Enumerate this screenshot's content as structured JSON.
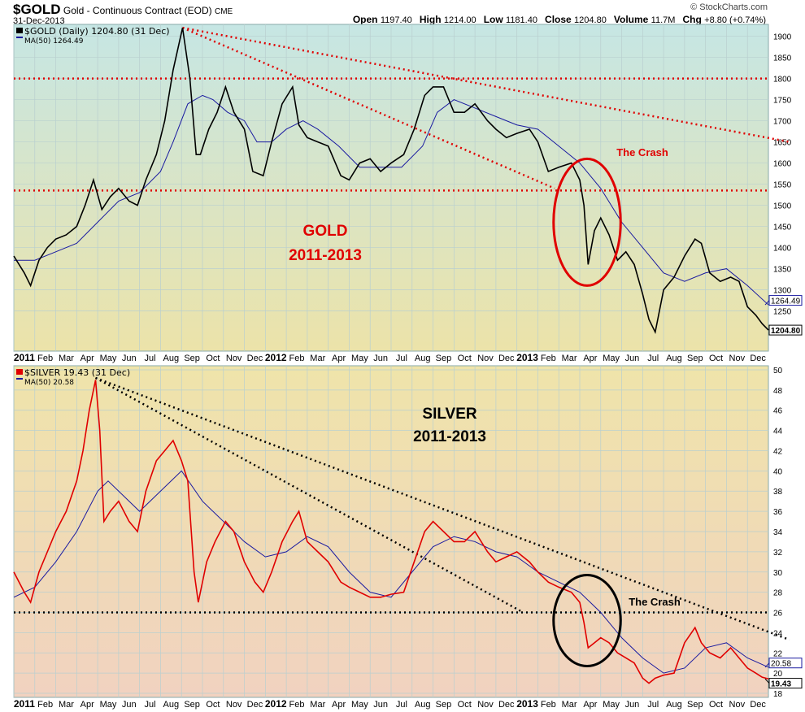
{
  "header": {
    "symbol": "$GOLD",
    "name": "Gold - Continuous Contract (EOD)",
    "exchange": "CME",
    "date": "31-Dec-2013",
    "brand": "© StockCharts.com",
    "quote": [
      {
        "k": "Open",
        "v": "1197.40"
      },
      {
        "k": "High",
        "v": "1214.00"
      },
      {
        "k": "Low",
        "v": "1181.40"
      },
      {
        "k": "Close",
        "v": "1204.80"
      },
      {
        "k": "Volume",
        "v": "11.7M"
      },
      {
        "k": "Chg",
        "v": "+8.80 (+0.74%)"
      }
    ]
  },
  "chart_data": [
    {
      "type": "line",
      "title": "GOLD",
      "subtitle": "2011-2013",
      "legend": [
        "$GOLD (Daily) 1204.80 (31 Dec)",
        "MA(50) 1264.49"
      ],
      "last_price": "1204.80",
      "last_ma": "1264.49",
      "ylim": [
        1155,
        1928
      ],
      "yticks": [
        1250,
        1300,
        1350,
        1400,
        1450,
        1500,
        1550,
        1600,
        1650,
        1700,
        1750,
        1800,
        1850,
        1900
      ],
      "x_unit": "months since Jan 2011",
      "price": [
        [
          0,
          1380
        ],
        [
          0.5,
          1340
        ],
        [
          0.8,
          1310
        ],
        [
          1.2,
          1370
        ],
        [
          1.6,
          1400
        ],
        [
          2,
          1420
        ],
        [
          2.5,
          1430
        ],
        [
          3,
          1450
        ],
        [
          3.4,
          1500
        ],
        [
          3.8,
          1560
        ],
        [
          4.2,
          1490
        ],
        [
          4.6,
          1520
        ],
        [
          5,
          1540
        ],
        [
          5.5,
          1510
        ],
        [
          5.9,
          1500
        ],
        [
          6.3,
          1560
        ],
        [
          6.8,
          1620
        ],
        [
          7.2,
          1700
        ],
        [
          7.6,
          1820
        ],
        [
          8.05,
          1920
        ],
        [
          8.4,
          1800
        ],
        [
          8.7,
          1620
        ],
        [
          8.9,
          1620
        ],
        [
          9.3,
          1680
        ],
        [
          9.7,
          1720
        ],
        [
          10.1,
          1780
        ],
        [
          10.5,
          1720
        ],
        [
          11,
          1680
        ],
        [
          11.4,
          1580
        ],
        [
          11.9,
          1570
        ],
        [
          12.3,
          1650
        ],
        [
          12.8,
          1740
        ],
        [
          13.3,
          1780
        ],
        [
          13.6,
          1690
        ],
        [
          14,
          1660
        ],
        [
          14.5,
          1650
        ],
        [
          15,
          1640
        ],
        [
          15.6,
          1570
        ],
        [
          16,
          1560
        ],
        [
          16.5,
          1600
        ],
        [
          17,
          1610
        ],
        [
          17.5,
          1580
        ],
        [
          18,
          1600
        ],
        [
          18.6,
          1620
        ],
        [
          19.1,
          1680
        ],
        [
          19.6,
          1760
        ],
        [
          20,
          1780
        ],
        [
          20.5,
          1780
        ],
        [
          21,
          1720
        ],
        [
          21.5,
          1720
        ],
        [
          22,
          1740
        ],
        [
          22.6,
          1700
        ],
        [
          23,
          1680
        ],
        [
          23.5,
          1660
        ],
        [
          24,
          1670
        ],
        [
          24.6,
          1680
        ],
        [
          25,
          1650
        ],
        [
          25.5,
          1580
        ],
        [
          26,
          1590
        ],
        [
          26.6,
          1600
        ],
        [
          27,
          1560
        ],
        [
          27.2,
          1500
        ],
        [
          27.4,
          1360
        ],
        [
          27.7,
          1440
        ],
        [
          28,
          1470
        ],
        [
          28.4,
          1430
        ],
        [
          28.8,
          1370
        ],
        [
          29.2,
          1390
        ],
        [
          29.6,
          1360
        ],
        [
          30,
          1290
        ],
        [
          30.3,
          1230
        ],
        [
          30.6,
          1200
        ],
        [
          31,
          1300
        ],
        [
          31.5,
          1330
        ],
        [
          32,
          1380
        ],
        [
          32.5,
          1420
        ],
        [
          32.8,
          1410
        ],
        [
          33.2,
          1340
        ],
        [
          33.7,
          1320
        ],
        [
          34.2,
          1330
        ],
        [
          34.6,
          1320
        ],
        [
          35,
          1260
        ],
        [
          35.4,
          1240
        ],
        [
          35.7,
          1220
        ],
        [
          36,
          1204.8
        ]
      ],
      "ma50": [
        [
          0,
          1370
        ],
        [
          1,
          1370
        ],
        [
          2,
          1390
        ],
        [
          3,
          1410
        ],
        [
          4,
          1460
        ],
        [
          5,
          1510
        ],
        [
          6,
          1530
        ],
        [
          7,
          1580
        ],
        [
          7.6,
          1650
        ],
        [
          8.3,
          1740
        ],
        [
          9,
          1760
        ],
        [
          9.5,
          1750
        ],
        [
          10.2,
          1720
        ],
        [
          11,
          1700
        ],
        [
          11.6,
          1650
        ],
        [
          12.3,
          1650
        ],
        [
          13,
          1680
        ],
        [
          13.8,
          1700
        ],
        [
          14.5,
          1680
        ],
        [
          15.5,
          1640
        ],
        [
          16.5,
          1590
        ],
        [
          17.5,
          1590
        ],
        [
          18.5,
          1590
        ],
        [
          19.5,
          1640
        ],
        [
          20.2,
          1720
        ],
        [
          21,
          1750
        ],
        [
          22,
          1730
        ],
        [
          23,
          1710
        ],
        [
          24,
          1690
        ],
        [
          25,
          1680
        ],
        [
          26,
          1640
        ],
        [
          27,
          1600
        ],
        [
          28,
          1540
        ],
        [
          29,
          1460
        ],
        [
          30,
          1400
        ],
        [
          31,
          1340
        ],
        [
          32,
          1320
        ],
        [
          33,
          1340
        ],
        [
          34,
          1350
        ],
        [
          35,
          1310
        ],
        [
          36,
          1264.49
        ]
      ],
      "hlines": [
        1800,
        1535
      ],
      "trendlines": [
        [
          [
            8.05,
            1920
          ],
          [
            37,
            1650
          ]
        ],
        [
          [
            8.05,
            1920
          ],
          [
            25.8,
            1540
          ]
        ]
      ],
      "annotation": {
        "text": "The Crash",
        "ellipse": {
          "cx": 27.35,
          "cy": 1460,
          "rx": 1.6,
          "ry": 150
        }
      }
    },
    {
      "type": "line",
      "title": "SILVER",
      "subtitle": "2011-2013",
      "legend": [
        "$SILVER 19.43 (31 Dec)",
        "MA(50) 20.58"
      ],
      "last_price": "19.43",
      "last_ma": "20.58",
      "ylim": [
        17.6,
        50.4
      ],
      "yticks": [
        18,
        20,
        22,
        24,
        26,
        28,
        30,
        32,
        34,
        36,
        38,
        40,
        42,
        44,
        46,
        48,
        50
      ],
      "price": [
        [
          0,
          30
        ],
        [
          0.5,
          28
        ],
        [
          0.8,
          27
        ],
        [
          1.2,
          30
        ],
        [
          1.6,
          32
        ],
        [
          2,
          34
        ],
        [
          2.5,
          36
        ],
        [
          3,
          39
        ],
        [
          3.3,
          42
        ],
        [
          3.6,
          46
        ],
        [
          3.9,
          49
        ],
        [
          4.1,
          44
        ],
        [
          4.3,
          35
        ],
        [
          4.6,
          36
        ],
        [
          5,
          37
        ],
        [
          5.5,
          35
        ],
        [
          5.9,
          34
        ],
        [
          6.3,
          38
        ],
        [
          6.8,
          41
        ],
        [
          7.2,
          42
        ],
        [
          7.6,
          43
        ],
        [
          8,
          41
        ],
        [
          8.3,
          39
        ],
        [
          8.6,
          30
        ],
        [
          8.8,
          27
        ],
        [
          9.2,
          31
        ],
        [
          9.6,
          33
        ],
        [
          10.1,
          35
        ],
        [
          10.5,
          34
        ],
        [
          11,
          31
        ],
        [
          11.5,
          29
        ],
        [
          11.9,
          28
        ],
        [
          12.3,
          30
        ],
        [
          12.8,
          33
        ],
        [
          13.3,
          35
        ],
        [
          13.6,
          36
        ],
        [
          14,
          33
        ],
        [
          14.5,
          32
        ],
        [
          15,
          31
        ],
        [
          15.6,
          29
        ],
        [
          16,
          28.5
        ],
        [
          16.5,
          28
        ],
        [
          17,
          27.5
        ],
        [
          17.5,
          27.5
        ],
        [
          18,
          27.8
        ],
        [
          18.6,
          28
        ],
        [
          19.1,
          31
        ],
        [
          19.6,
          34
        ],
        [
          20,
          35
        ],
        [
          20.5,
          34
        ],
        [
          21,
          33
        ],
        [
          21.5,
          33
        ],
        [
          22,
          34
        ],
        [
          22.6,
          32
        ],
        [
          23,
          31
        ],
        [
          23.5,
          31.5
        ],
        [
          24,
          32
        ],
        [
          24.6,
          31
        ],
        [
          25,
          30
        ],
        [
          25.5,
          29
        ],
        [
          26,
          28.5
        ],
        [
          26.6,
          28
        ],
        [
          27,
          27
        ],
        [
          27.2,
          25
        ],
        [
          27.4,
          22.5
        ],
        [
          27.7,
          23
        ],
        [
          28,
          23.5
        ],
        [
          28.4,
          23
        ],
        [
          28.8,
          22
        ],
        [
          29.2,
          21.5
        ],
        [
          29.6,
          21
        ],
        [
          30,
          19.5
        ],
        [
          30.3,
          19
        ],
        [
          30.6,
          19.5
        ],
        [
          31,
          19.8
        ],
        [
          31.5,
          20
        ],
        [
          32,
          23
        ],
        [
          32.5,
          24.5
        ],
        [
          32.8,
          23
        ],
        [
          33.2,
          22
        ],
        [
          33.7,
          21.5
        ],
        [
          34.2,
          22.5
        ],
        [
          34.6,
          21.5
        ],
        [
          35,
          20.5
        ],
        [
          35.4,
          20
        ],
        [
          35.7,
          19.6
        ],
        [
          36,
          19.43
        ]
      ],
      "ma50": [
        [
          0,
          27.5
        ],
        [
          1,
          28.5
        ],
        [
          2,
          31
        ],
        [
          3,
          34
        ],
        [
          4,
          38
        ],
        [
          4.5,
          39
        ],
        [
          5,
          38
        ],
        [
          6,
          36
        ],
        [
          7,
          38
        ],
        [
          8,
          40
        ],
        [
          9,
          37
        ],
        [
          10,
          35
        ],
        [
          11,
          33
        ],
        [
          12,
          31.5
        ],
        [
          13,
          32
        ],
        [
          14,
          33.5
        ],
        [
          15,
          32.5
        ],
        [
          16,
          30
        ],
        [
          17,
          28
        ],
        [
          18,
          27.5
        ],
        [
          19,
          30
        ],
        [
          20,
          32.5
        ],
        [
          21,
          33.5
        ],
        [
          22,
          33
        ],
        [
          23,
          32
        ],
        [
          24,
          31.5
        ],
        [
          25,
          30
        ],
        [
          26,
          29
        ],
        [
          27,
          28
        ],
        [
          28,
          26
        ],
        [
          29,
          23.5
        ],
        [
          30,
          21.5
        ],
        [
          31,
          20
        ],
        [
          32,
          20.5
        ],
        [
          33,
          22.5
        ],
        [
          34,
          23
        ],
        [
          35,
          21.5
        ],
        [
          36,
          20.58
        ]
      ],
      "hlines": [
        26
      ],
      "trendlines": [
        [
          [
            3.9,
            49.2
          ],
          [
            37,
            23.3
          ]
        ],
        [
          [
            3.9,
            49.2
          ],
          [
            24.3,
            26
          ]
        ]
      ],
      "annotation": {
        "text": "The Crash",
        "ellipse": {
          "cx": 27.35,
          "cy": 25.2,
          "rx": 1.6,
          "ry": 4.5
        }
      }
    }
  ],
  "x_axis": {
    "labels": [
      [
        "2011",
        0
      ],
      [
        "Feb",
        1
      ],
      [
        "Mar",
        2
      ],
      [
        "Apr",
        3
      ],
      [
        "May",
        4
      ],
      [
        "Jun",
        5
      ],
      [
        "Jul",
        6
      ],
      [
        "Aug",
        7
      ],
      [
        "Sep",
        8
      ],
      [
        "Oct",
        9
      ],
      [
        "Nov",
        10
      ],
      [
        "Dec",
        11
      ],
      [
        "2012",
        12
      ],
      [
        "Feb",
        13
      ],
      [
        "Mar",
        14
      ],
      [
        "Apr",
        15
      ],
      [
        "May",
        16
      ],
      [
        "Jun",
        17
      ],
      [
        "Jul",
        18
      ],
      [
        "Aug",
        19
      ],
      [
        "Sep",
        20
      ],
      [
        "Oct",
        21
      ],
      [
        "Nov",
        22
      ],
      [
        "Dec",
        23
      ],
      [
        "2013",
        24
      ],
      [
        "Feb",
        25
      ],
      [
        "Mar",
        26
      ],
      [
        "Apr",
        27
      ],
      [
        "May",
        28
      ],
      [
        "Jun",
        29
      ],
      [
        "Jul",
        30
      ],
      [
        "Aug",
        31
      ],
      [
        "Sep",
        32
      ],
      [
        "Oct",
        33
      ],
      [
        "Nov",
        34
      ],
      [
        "Dec",
        35
      ]
    ]
  },
  "colors": {
    "gold_line": "#000000",
    "silver_line": "#e00000",
    "ma": "#1a1aa0",
    "gold_trend": "#e00000",
    "silver_trend": "#000000"
  }
}
